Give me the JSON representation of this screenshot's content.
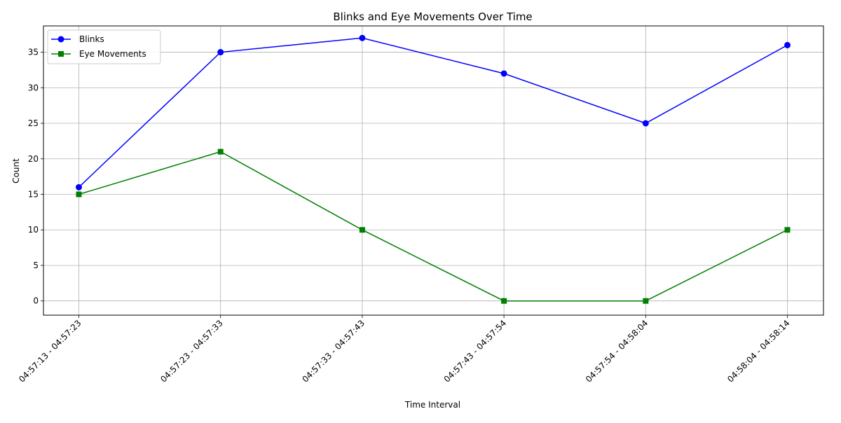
{
  "chart_data": {
    "type": "line",
    "title": "Blinks and Eye Movements Over Time",
    "xlabel": "Time Interval",
    "ylabel": "Count",
    "categories": [
      "04:57:13 - 04:57:23",
      "04:57:23 - 04:57:33",
      "04:57:33 - 04:57:43",
      "04:57:43 - 04:57:54",
      "04:57:54 - 04:58:04",
      "04:58:04 - 04:58:14"
    ],
    "series": [
      {
        "name": "Blinks",
        "values": [
          16,
          35,
          37,
          32,
          25,
          36
        ],
        "color": "#0000ff",
        "marker": "circle"
      },
      {
        "name": "Eye Movements",
        "values": [
          15,
          21,
          10,
          0,
          0,
          10
        ],
        "color": "#008000",
        "marker": "square"
      }
    ],
    "ylim": [
      -2,
      38.7
    ],
    "yticks": [
      0,
      5,
      10,
      15,
      20,
      25,
      30,
      35
    ],
    "grid": true,
    "legend_position": "top-left"
  }
}
